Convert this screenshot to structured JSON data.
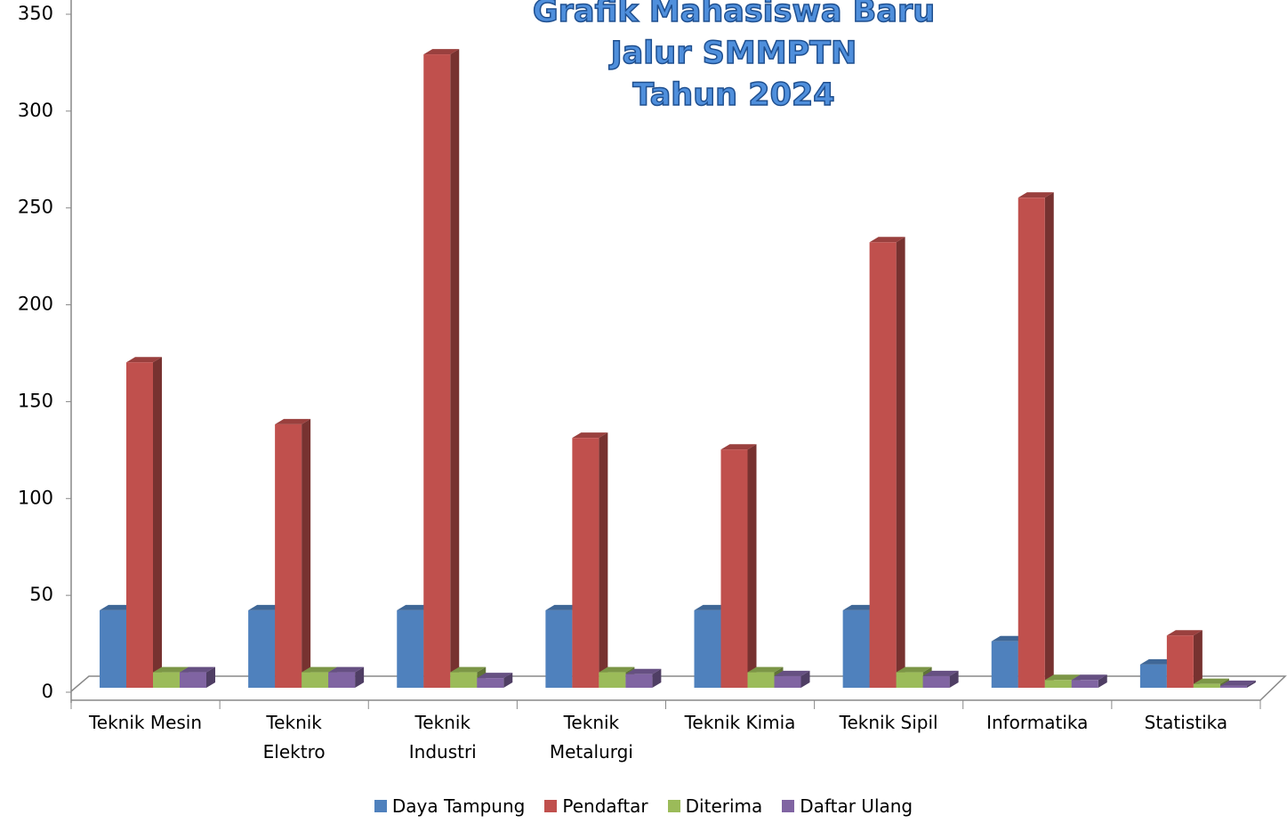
{
  "chart_data": {
    "type": "bar3d",
    "title": "Grafik Mahasiswa Baru\nJalur SMMPTN\nTahun 2024",
    "categories": [
      "Teknik Mesin",
      "Teknik\nElektro",
      "Teknik\nIndustri",
      "Teknik\nMetalurgi",
      "Teknik Kimia",
      "Teknik Sipil",
      "Informatika",
      "Statistika"
    ],
    "series": [
      {
        "name": "Daya Tampung",
        "color": "#4f81bd",
        "values": [
          40,
          40,
          40,
          40,
          40,
          40,
          24,
          12
        ]
      },
      {
        "name": "Pendaftar",
        "color": "#c0504d",
        "values": [
          168,
          136,
          327,
          129,
          123,
          230,
          253,
          27
        ]
      },
      {
        "name": "Diterima",
        "color": "#9bbb59",
        "values": [
          8,
          8,
          8,
          8,
          8,
          8,
          4,
          2
        ]
      },
      {
        "name": "Daftar Ulang",
        "color": "#8064a2",
        "values": [
          8,
          8,
          5,
          7,
          6,
          6,
          4,
          1
        ]
      }
    ],
    "ylim": [
      0,
      350
    ],
    "yticks": [
      0,
      50,
      100,
      150,
      200,
      250,
      300,
      350
    ],
    "legend": "bottom"
  }
}
